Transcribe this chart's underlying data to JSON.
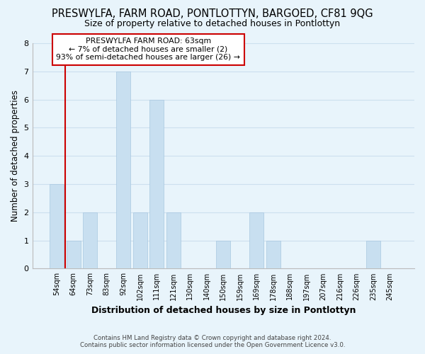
{
  "title": "PRESWYLFA, FARM ROAD, PONTLOTTYN, BARGOED, CF81 9QG",
  "subtitle": "Size of property relative to detached houses in Pontlottyn",
  "xlabel": "Distribution of detached houses by size in Pontlottyn",
  "ylabel": "Number of detached properties",
  "bar_labels": [
    "54sqm",
    "64sqm",
    "73sqm",
    "83sqm",
    "92sqm",
    "102sqm",
    "111sqm",
    "121sqm",
    "130sqm",
    "140sqm",
    "150sqm",
    "159sqm",
    "169sqm",
    "178sqm",
    "188sqm",
    "197sqm",
    "207sqm",
    "216sqm",
    "226sqm",
    "235sqm",
    "245sqm"
  ],
  "bar_values": [
    3,
    1,
    2,
    0,
    7,
    2,
    6,
    2,
    0,
    0,
    1,
    0,
    2,
    1,
    0,
    0,
    0,
    0,
    0,
    1,
    0
  ],
  "bar_color": "#c8dff0",
  "bar_edge_color": "#a8c8e0",
  "annotation_title": "PRESWYLFA FARM ROAD: 63sqm",
  "annotation_line1": "← 7% of detached houses are smaller (2)",
  "annotation_line2": "93% of semi-detached houses are larger (26) →",
  "annotation_box_color": "#ffffff",
  "annotation_box_edge": "#cc0000",
  "vline_color": "#cc0000",
  "ylim": [
    0,
    8
  ],
  "yticks": [
    0,
    1,
    2,
    3,
    4,
    5,
    6,
    7,
    8
  ],
  "grid_color": "#cce0ee",
  "bg_color": "#e8f4fb",
  "title_fontsize": 10.5,
  "subtitle_fontsize": 9,
  "footer_line1": "Contains HM Land Registry data © Crown copyright and database right 2024.",
  "footer_line2": "Contains public sector information licensed under the Open Government Licence v3.0."
}
